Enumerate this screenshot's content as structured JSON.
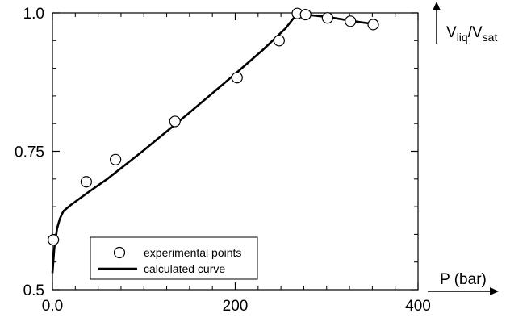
{
  "chart_data": {
    "type": "line",
    "title": "",
    "xlabel": "P (bar)",
    "ylabel": {
      "prefix_v1": "V",
      "sub1": "liq",
      "slash": "/V",
      "sub2": "sat"
    },
    "xlim": [
      0,
      400
    ],
    "ylim": [
      0.5,
      1.0
    ],
    "x_ticks": [
      "0.0",
      "200",
      "400"
    ],
    "x_tick_values": [
      0,
      200,
      400
    ],
    "y_ticks": [
      "0.5",
      "0.75",
      "1.0"
    ],
    "y_tick_values": [
      0.5,
      0.75,
      1.0
    ],
    "grid": false,
    "legend_position": "bottom-left",
    "series": [
      {
        "name": "experimental points",
        "kind": "scatter",
        "x": [
          1,
          37,
          69,
          134,
          202,
          248,
          268,
          277,
          301,
          326,
          351
        ],
        "y": [
          0.59,
          0.695,
          0.735,
          0.804,
          0.883,
          0.95,
          0.999,
          0.997,
          0.991,
          0.985,
          0.979
        ]
      },
      {
        "name": "calculated curve",
        "kind": "line",
        "x": [
          0,
          2,
          5,
          8,
          12,
          20,
          40,
          60,
          100,
          150,
          200,
          230,
          255,
          266,
          270,
          300,
          330,
          355
        ],
        "y": [
          0.53,
          0.575,
          0.61,
          0.628,
          0.642,
          0.653,
          0.677,
          0.7,
          0.752,
          0.82,
          0.89,
          0.933,
          0.972,
          0.995,
          0.998,
          0.993,
          0.985,
          0.979
        ]
      }
    ],
    "colors": {
      "axis": "#000000",
      "marker_fill": "#ffffff",
      "line": "#000000"
    }
  }
}
